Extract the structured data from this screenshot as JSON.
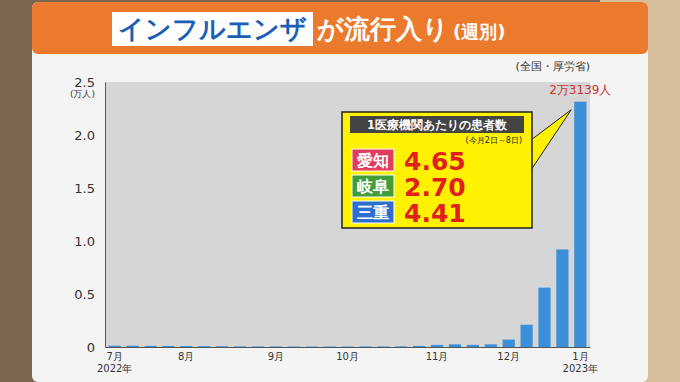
{
  "chart_data": {
    "type": "bar",
    "title": [
      "インフルエンザ",
      "が流行入り",
      "(週別)"
    ],
    "source": "(全国・厚労省)",
    "y_label": "(万人)",
    "categories": [
      "7月\n2022年",
      null,
      null,
      null,
      "8月",
      null,
      null,
      null,
      null,
      "9月",
      null,
      null,
      null,
      "10月",
      null,
      null,
      null,
      null,
      "11月",
      null,
      null,
      null,
      "12月",
      null,
      null,
      null,
      "1月\n2023年"
    ],
    "values": [
      0.012,
      0.012,
      0.011,
      0.01,
      0.009,
      0.008,
      0.007,
      0.006,
      0.005,
      0.005,
      0.004,
      0.004,
      0.004,
      0.004,
      0.005,
      0.005,
      0.006,
      0.01,
      0.02,
      0.025,
      0.02,
      0.025,
      0.07,
      0.21,
      0.56,
      0.92,
      2.3139
    ],
    "color": "#3b8fd8",
    "ylim": [
      0,
      2.5
    ],
    "yticks": [
      0,
      0.5,
      {
        "value": 1,
        "label": "1.0"
      },
      1.5,
      {
        "value": 2,
        "label": "2.0"
      },
      2.5
    ],
    "grid": false,
    "annotations": [
      {
        "text": "2万3139人",
        "value": 2.3139
      }
    ],
    "inset": {
      "title": "1医療機関あたりの患者数",
      "subtitle": "(今月2日～8日)",
      "rows": [
        {
          "label": "愛知",
          "value": "4.65"
        },
        {
          "label": "岐阜",
          "value": "2.70"
        },
        {
          "label": "三重",
          "value": "4.41"
        }
      ]
    }
  }
}
